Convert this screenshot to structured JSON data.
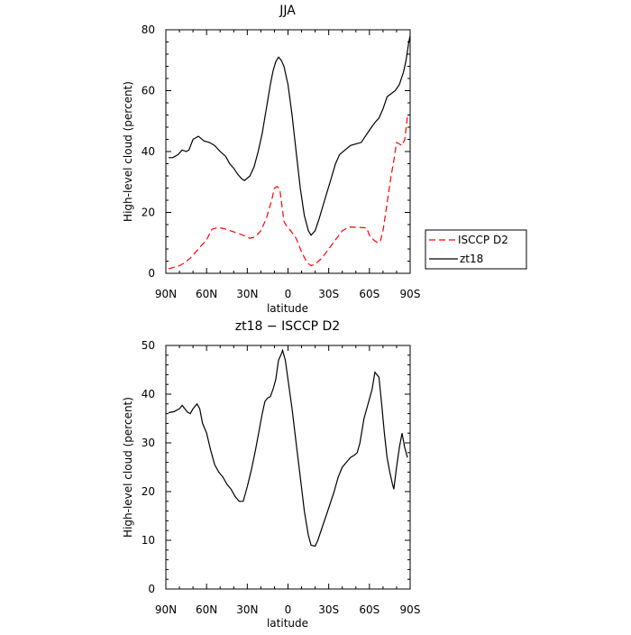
{
  "chart_data": [
    {
      "type": "line",
      "title": "JJA",
      "xlabel": "latitude",
      "ylabel": "High-level cloud (percent)",
      "xlim": [
        90,
        -90
      ],
      "ylim": [
        0,
        80
      ],
      "x_ticks": [
        90,
        60,
        30,
        0,
        -30,
        -60,
        -90
      ],
      "x_tick_labels": [
        "90N",
        "60N",
        "30N",
        "0",
        "30S",
        "60S",
        "90S"
      ],
      "y_ticks": [
        0,
        20,
        40,
        60,
        80
      ],
      "y_tick_labels": [
        "0",
        "20",
        "40",
        "60",
        "80"
      ],
      "legend_position": "outside-right",
      "series": [
        {
          "name": "ISCCP D2",
          "color": "#ff0000",
          "style": "dashed",
          "points": [
            [
              88.0,
              1.5
            ],
            [
              84,
              2
            ],
            [
              80,
              2.5
            ],
            [
              76,
              3.5
            ],
            [
              72,
              5
            ],
            [
              68,
              7
            ],
            [
              64,
              9
            ],
            [
              60,
              11
            ],
            [
              56,
              14.5
            ],
            [
              52,
              15
            ],
            [
              48,
              14.8
            ],
            [
              44,
              14.2
            ],
            [
              40,
              13.6
            ],
            [
              36,
              13
            ],
            [
              32,
              12.3
            ],
            [
              28,
              11.5
            ],
            [
              24,
              12
            ],
            [
              20,
              14
            ],
            [
              16,
              18
            ],
            [
              12,
              24
            ],
            [
              10,
              28
            ],
            [
              8,
              28.5
            ],
            [
              6,
              27.5
            ],
            [
              3,
              17
            ],
            [
              1,
              15.5
            ],
            [
              -2,
              14
            ],
            [
              -6,
              11.5
            ],
            [
              -10,
              7
            ],
            [
              -14,
              3.5
            ],
            [
              -17,
              2.5
            ],
            [
              -20,
              3
            ],
            [
              -25,
              5
            ],
            [
              -30,
              8
            ],
            [
              -35,
              11
            ],
            [
              -40,
              14
            ],
            [
              -45,
              15.2
            ],
            [
              -50,
              15.1
            ],
            [
              -55,
              15
            ],
            [
              -58,
              14.9
            ],
            [
              -60,
              12.5
            ],
            [
              -63,
              11
            ],
            [
              -66,
              10
            ],
            [
              -68,
              10.5
            ],
            [
              -70,
              14
            ],
            [
              -73,
              23
            ],
            [
              -76,
              32
            ],
            [
              -78,
              37
            ],
            [
              -80,
              43
            ],
            [
              -82,
              42.5
            ],
            [
              -84,
              42
            ],
            [
              -86,
              44
            ],
            [
              -88,
              51.5
            ]
          ]
        },
        {
          "name": "zt18",
          "color": "#000000",
          "style": "solid",
          "points": [
            [
              88.0,
              38
            ],
            [
              85,
              38
            ],
            [
              81,
              39
            ],
            [
              78,
              40.5
            ],
            [
              75,
              40
            ],
            [
              73,
              40.5
            ],
            [
              70,
              44
            ],
            [
              66,
              45
            ],
            [
              62,
              43.5
            ],
            [
              58,
              43
            ],
            [
              54,
              42
            ],
            [
              50,
              40
            ],
            [
              46,
              38.5
            ],
            [
              43,
              36
            ],
            [
              40,
              34.5
            ],
            [
              37,
              32.5
            ],
            [
              34,
              31
            ],
            [
              32,
              30.5
            ],
            [
              28,
              32
            ],
            [
              25,
              35
            ],
            [
              22,
              40
            ],
            [
              19,
              46
            ],
            [
              16,
              54
            ],
            [
              13,
              62
            ],
            [
              11,
              66.5
            ],
            [
              9,
              69.5
            ],
            [
              7,
              71
            ],
            [
              5,
              70
            ],
            [
              3,
              68
            ],
            [
              0,
              62
            ],
            [
              -3,
              52
            ],
            [
              -6,
              40
            ],
            [
              -9,
              28
            ],
            [
              -12,
              19
            ],
            [
              -15,
              14
            ],
            [
              -17,
              12.5
            ],
            [
              -20,
              14
            ],
            [
              -23,
              18
            ],
            [
              -27,
              24
            ],
            [
              -31,
              30
            ],
            [
              -35,
              36
            ],
            [
              -38,
              39
            ],
            [
              -42,
              40.5
            ],
            [
              -46,
              42
            ],
            [
              -50,
              42.5
            ],
            [
              -54,
              43
            ],
            [
              -57,
              45
            ],
            [
              -60,
              47
            ],
            [
              -64,
              49.5
            ],
            [
              -67,
              51
            ],
            [
              -70,
              54
            ],
            [
              -73,
              58
            ],
            [
              -76,
              59
            ],
            [
              -79,
              60
            ],
            [
              -82,
              62
            ],
            [
              -85,
              66
            ],
            [
              -87,
              70
            ],
            [
              -89,
              76
            ],
            [
              -90,
              78
            ]
          ]
        }
      ]
    },
    {
      "type": "line",
      "title": "zt18 − ISCCP D2",
      "xlabel": "latitude",
      "ylabel": "High-level cloud (percent)",
      "xlim": [
        90,
        -90
      ],
      "ylim": [
        0,
        50
      ],
      "x_ticks": [
        90,
        60,
        30,
        0,
        -30,
        -60,
        -90
      ],
      "x_tick_labels": [
        "90N",
        "60N",
        "30N",
        "0",
        "30S",
        "60S",
        "90S"
      ],
      "y_ticks": [
        0,
        10,
        20,
        30,
        40,
        50
      ],
      "y_tick_labels": [
        "0",
        "10",
        "20",
        "30",
        "40",
        "50"
      ],
      "series": [
        {
          "color": "#000000",
          "style": "solid",
          "points": [
            [
              88.0,
              36.2
            ],
            [
              84,
              36.4
            ],
            [
              80,
              37
            ],
            [
              78,
              37.7
            ],
            [
              76,
              37
            ],
            [
              74,
              36.3
            ],
            [
              72,
              36
            ],
            [
              70,
              37
            ],
            [
              67,
              38
            ],
            [
              65,
              37
            ],
            [
              63,
              34
            ],
            [
              60,
              32
            ],
            [
              57,
              28.5
            ],
            [
              54,
              25.5
            ],
            [
              51,
              24
            ],
            [
              48,
              23
            ],
            [
              45,
              21.5
            ],
            [
              42,
              20.5
            ],
            [
              39,
              19
            ],
            [
              36,
              18
            ],
            [
              33,
              18
            ],
            [
              30,
              21
            ],
            [
              27,
              24.5
            ],
            [
              24,
              28.5
            ],
            [
              21,
              33
            ],
            [
              19,
              36
            ],
            [
              17,
              38.5
            ],
            [
              15,
              39.2
            ],
            [
              13,
              39.5
            ],
            [
              11,
              41
            ],
            [
              9,
              43
            ],
            [
              7,
              47
            ],
            [
              5,
              48.2
            ],
            [
              4,
              49
            ],
            [
              2,
              47
            ],
            [
              0,
              43
            ],
            [
              -3,
              37
            ],
            [
              -6,
              30
            ],
            [
              -9,
              23
            ],
            [
              -12,
              16
            ],
            [
              -15,
              11
            ],
            [
              -17,
              9
            ],
            [
              -20,
              8.8
            ],
            [
              -22,
              10
            ],
            [
              -25,
              12.5
            ],
            [
              -28,
              15
            ],
            [
              -31,
              17.5
            ],
            [
              -34,
              20
            ],
            [
              -37,
              23
            ],
            [
              -40,
              25
            ],
            [
              -43,
              26
            ],
            [
              -46,
              27
            ],
            [
              -49,
              27.5
            ],
            [
              -51,
              28
            ],
            [
              -53,
              30
            ],
            [
              -56,
              35
            ],
            [
              -59,
              38
            ],
            [
              -62,
              41
            ],
            [
              -64,
              44.5
            ],
            [
              -67,
              43.5
            ],
            [
              -69,
              38
            ],
            [
              -71,
              32
            ],
            [
              -73,
              27
            ],
            [
              -75,
              24
            ],
            [
              -77,
              21.5
            ],
            [
              -78,
              20.5
            ],
            [
              -80,
              25
            ],
            [
              -82,
              29
            ],
            [
              -84,
              32
            ],
            [
              -86,
              29
            ],
            [
              -88,
              27
            ]
          ]
        }
      ]
    }
  ]
}
